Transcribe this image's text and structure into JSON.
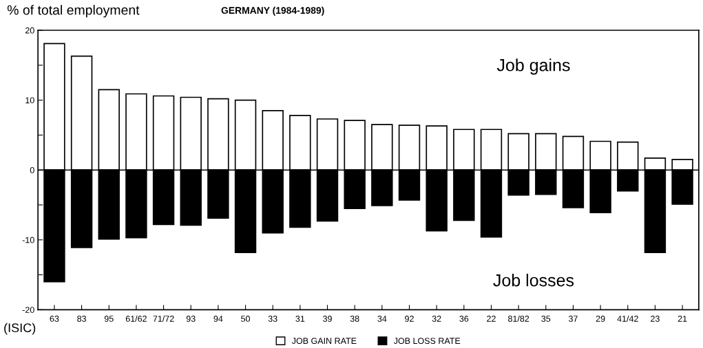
{
  "chart_data": {
    "type": "bar",
    "title": "GERMANY (1984-1989)",
    "ylabel": "% of total employment",
    "categories": [
      "63",
      "83",
      "95",
      "61/62",
      "71/72",
      "93",
      "94",
      "50",
      "33",
      "31",
      "39",
      "38",
      "34",
      "92",
      "32",
      "36",
      "22",
      "81/82",
      "35",
      "37",
      "29",
      "41/42",
      "23",
      "21"
    ],
    "series": [
      {
        "name": "JOB GAIN RATE",
        "color": "#ffffff",
        "values": [
          18.1,
          16.3,
          11.5,
          10.9,
          10.6,
          10.4,
          10.2,
          10.0,
          8.5,
          7.8,
          7.3,
          7.1,
          6.5,
          6.4,
          6.3,
          5.8,
          5.8,
          5.2,
          5.2,
          4.8,
          4.1,
          4.0,
          1.7,
          1.5
        ]
      },
      {
        "name": "JOB LOSS RATE",
        "color": "#000000",
        "values": [
          -16.0,
          -11.1,
          -9.9,
          -9.7,
          -7.8,
          -7.9,
          -6.9,
          -11.8,
          -9.0,
          -8.2,
          -7.3,
          -5.5,
          -5.1,
          -4.3,
          -8.7,
          -7.2,
          -9.6,
          -3.6,
          -3.5,
          -5.4,
          -6.1,
          -3.0,
          -11.8,
          -4.9
        ]
      }
    ],
    "ylim": [
      -20,
      20
    ],
    "yticks": [
      -20,
      {
        "value": -15,
        "label": null
      },
      -10,
      {
        "value": -5,
        "label": null
      },
      0,
      {
        "value": 5,
        "label": null
      },
      10,
      {
        "value": 15,
        "label": null
      },
      20
    ],
    "ref_lines": [
      {
        "axis": "y",
        "value": 0,
        "color": "#000000"
      }
    ],
    "annotations": [
      "Job gains",
      "Job losses",
      "(ISIC)"
    ],
    "stacked": true,
    "grid": false,
    "legend": "bottom"
  }
}
